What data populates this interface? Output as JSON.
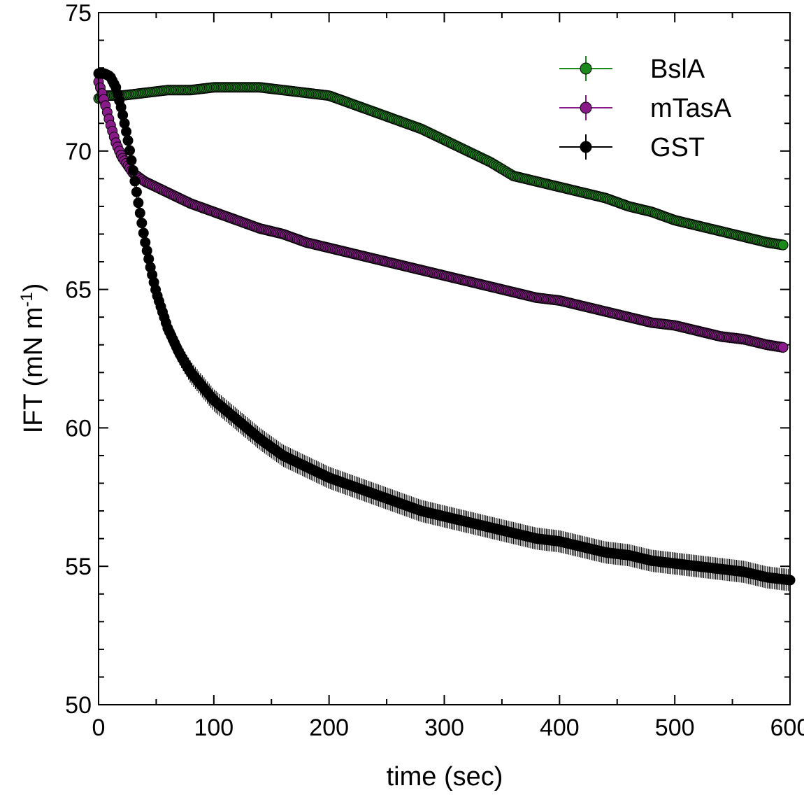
{
  "chart_data": {
    "type": "scatter",
    "title": "",
    "xlabel": "time (sec)",
    "ylabel_main": "IFT (mN m",
    "ylabel_sup": "-1",
    "ylabel_close": ")",
    "xlim": [
      0,
      600
    ],
    "ylim": [
      50,
      75
    ],
    "xticks": [
      "0",
      "100",
      "200",
      "300",
      "400",
      "500",
      "600"
    ],
    "yticks": [
      "50",
      "55",
      "60",
      "65",
      "70",
      "75"
    ],
    "grid": false,
    "legend_position": "top-right",
    "series": [
      {
        "name": "BslA",
        "color": "#1a8a1a",
        "x": [
          0,
          5,
          10,
          20,
          40,
          60,
          80,
          100,
          120,
          140,
          160,
          180,
          200,
          220,
          240,
          260,
          280,
          300,
          320,
          340,
          360,
          380,
          400,
          420,
          440,
          460,
          480,
          500,
          520,
          540,
          560,
          580,
          595
        ],
        "y": [
          71.9,
          72.0,
          72.0,
          72.0,
          72.1,
          72.2,
          72.2,
          72.3,
          72.3,
          72.3,
          72.2,
          72.1,
          72.0,
          71.7,
          71.4,
          71.1,
          70.8,
          70.4,
          70.0,
          69.6,
          69.1,
          68.9,
          68.7,
          68.5,
          68.3,
          68.0,
          67.8,
          67.5,
          67.3,
          67.1,
          66.9,
          66.7,
          66.6
        ],
        "err": [
          0.3,
          0.2,
          0.1,
          0.1,
          0.1,
          0.1,
          0.1,
          0.1,
          0.1,
          0.1,
          0.1,
          0.1,
          0.1,
          0.2,
          0.2,
          0.2,
          0.2,
          0.2,
          0.2,
          0.2,
          0.2,
          0.1,
          0.1,
          0.1,
          0.1,
          0.1,
          0.1,
          0.1,
          0.1,
          0.1,
          0.2,
          0.2,
          0.2
        ]
      },
      {
        "name": "mTasA",
        "color": "#8a1a8a",
        "x": [
          0,
          5,
          10,
          15,
          20,
          25,
          30,
          40,
          50,
          60,
          80,
          100,
          120,
          140,
          160,
          180,
          200,
          220,
          240,
          260,
          280,
          300,
          320,
          340,
          360,
          380,
          400,
          420,
          440,
          460,
          480,
          500,
          520,
          540,
          560,
          580,
          595
        ],
        "y": [
          72.5,
          71.8,
          71.0,
          70.3,
          69.8,
          69.5,
          69.2,
          68.9,
          68.7,
          68.5,
          68.1,
          67.8,
          67.5,
          67.2,
          67.0,
          66.7,
          66.5,
          66.3,
          66.1,
          65.9,
          65.7,
          65.5,
          65.3,
          65.1,
          64.9,
          64.7,
          64.6,
          64.4,
          64.2,
          64.0,
          63.8,
          63.7,
          63.5,
          63.3,
          63.2,
          63.0,
          62.9
        ],
        "err": [
          0.2,
          0.2,
          0.1,
          0.1,
          0.1,
          0.1,
          0.1,
          0.1,
          0.1,
          0.1,
          0.1,
          0.1,
          0.1,
          0.1,
          0.1,
          0.1,
          0.1,
          0.1,
          0.1,
          0.1,
          0.1,
          0.1,
          0.1,
          0.1,
          0.1,
          0.1,
          0.1,
          0.1,
          0.1,
          0.1,
          0.1,
          0.1,
          0.2,
          0.2,
          0.2,
          0.2,
          0.2
        ]
      },
      {
        "name": "GST",
        "color": "#000000",
        "x": [
          0,
          5,
          10,
          15,
          20,
          25,
          30,
          35,
          40,
          45,
          50,
          60,
          70,
          80,
          90,
          100,
          120,
          140,
          160,
          180,
          200,
          220,
          240,
          260,
          280,
          300,
          320,
          340,
          360,
          380,
          400,
          420,
          440,
          460,
          480,
          500,
          520,
          540,
          560,
          580,
          600
        ],
        "y": [
          72.8,
          72.8,
          72.7,
          72.3,
          71.5,
          70.5,
          69.3,
          68.0,
          66.8,
          65.8,
          64.9,
          63.6,
          62.7,
          62.0,
          61.5,
          61.0,
          60.3,
          59.6,
          59.0,
          58.6,
          58.2,
          57.9,
          57.6,
          57.3,
          57.0,
          56.8,
          56.6,
          56.4,
          56.2,
          56.0,
          55.9,
          55.7,
          55.5,
          55.4,
          55.2,
          55.1,
          55.0,
          54.9,
          54.8,
          54.6,
          54.5
        ],
        "err": [
          0.2,
          0.2,
          0.2,
          0.2,
          0.3,
          0.3,
          0.3,
          0.3,
          0.4,
          0.4,
          0.4,
          0.4,
          0.4,
          0.4,
          0.4,
          0.4,
          0.4,
          0.4,
          0.4,
          0.4,
          0.4,
          0.4,
          0.4,
          0.4,
          0.4,
          0.4,
          0.4,
          0.4,
          0.4,
          0.4,
          0.4,
          0.4,
          0.4,
          0.4,
          0.4,
          0.4,
          0.4,
          0.4,
          0.4,
          0.4,
          0.4
        ]
      }
    ]
  }
}
